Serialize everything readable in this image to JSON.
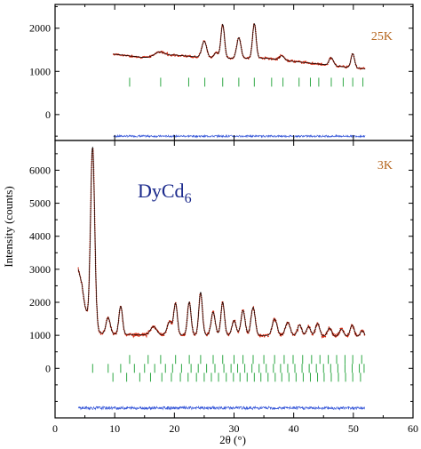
{
  "chart_data": {
    "type": "line",
    "xlabel": "2θ (°)",
    "ylabel": "Intensity (counts)",
    "xlim": [
      0,
      60
    ],
    "x_ticks": [
      0,
      10,
      20,
      30,
      40,
      50,
      60
    ],
    "compound_base": "DyCd",
    "compound_sub": "6",
    "colors": {
      "observed": "#d42a12",
      "calculated": "#000000",
      "difference": "#3b5bd9",
      "bragg": "#2fa845",
      "temp_label": "#b5651d",
      "compound": "#1b2a8c"
    },
    "panels": [
      {
        "label": "25K",
        "ylim": [
          -600,
          2550
        ],
        "y_ticks": [
          0,
          1000,
          2000
        ],
        "x_range": [
          9.8,
          52
        ],
        "background": [
          [
            9.8,
            1400
          ],
          [
            15,
            1320
          ],
          [
            20,
            1380
          ],
          [
            25,
            1320
          ],
          [
            30,
            1300
          ],
          [
            35,
            1310
          ],
          [
            40,
            1230
          ],
          [
            45,
            1160
          ],
          [
            50,
            1080
          ],
          [
            52,
            1060
          ]
        ],
        "peaks": [
          {
            "x": 17.5,
            "h": 100,
            "w": 0.8
          },
          {
            "x": 25.0,
            "h": 380,
            "w": 0.4
          },
          {
            "x": 27.0,
            "h": 120,
            "w": 0.35
          },
          {
            "x": 28.1,
            "h": 780,
            "w": 0.3
          },
          {
            "x": 30.8,
            "h": 480,
            "w": 0.35
          },
          {
            "x": 33.4,
            "h": 800,
            "w": 0.3
          },
          {
            "x": 38.0,
            "h": 100,
            "w": 0.4
          },
          {
            "x": 46.3,
            "h": 180,
            "w": 0.35
          },
          {
            "x": 49.9,
            "h": 330,
            "w": 0.3
          }
        ],
        "bragg_rows": [
          {
            "y": 750,
            "positions": [
              12.5,
              17.7,
              22.4,
              25.1,
              28.1,
              30.8,
              33.4,
              36.3,
              38.2,
              40.9,
              42.8,
              44.2,
              46.3,
              48.3,
              49.9,
              51.6
            ]
          }
        ],
        "difference_offset": -500,
        "difference_amp": 30
      },
      {
        "label": "3K",
        "ylim": [
          -1500,
          6900
        ],
        "y_ticks": [
          0,
          1000,
          2000,
          3000,
          4000,
          5000,
          6000
        ],
        "x_range": [
          3.9,
          52
        ],
        "background": [
          [
            3.9,
            3000
          ],
          [
            4.5,
            2550
          ],
          [
            5.0,
            1900
          ],
          [
            5.6,
            1400
          ],
          [
            6.5,
            1150
          ],
          [
            8,
            1050
          ],
          [
            10,
            1030
          ],
          [
            20,
            1010
          ],
          [
            30,
            1000
          ],
          [
            40,
            990
          ],
          [
            50,
            960
          ],
          [
            52,
            930
          ]
        ],
        "peaks": [
          {
            "x": 6.3,
            "h": 5500,
            "w": 0.35
          },
          {
            "x": 8.9,
            "h": 500,
            "w": 0.35
          },
          {
            "x": 11.0,
            "h": 850,
            "w": 0.3
          },
          {
            "x": 16.5,
            "h": 250,
            "w": 0.5
          },
          {
            "x": 19.2,
            "h": 400,
            "w": 0.4
          },
          {
            "x": 20.2,
            "h": 950,
            "w": 0.3
          },
          {
            "x": 22.5,
            "h": 1000,
            "w": 0.3
          },
          {
            "x": 24.4,
            "h": 1300,
            "w": 0.3
          },
          {
            "x": 26.5,
            "h": 700,
            "w": 0.35
          },
          {
            "x": 28.1,
            "h": 1000,
            "w": 0.3
          },
          {
            "x": 30.0,
            "h": 450,
            "w": 0.35
          },
          {
            "x": 31.5,
            "h": 750,
            "w": 0.35
          },
          {
            "x": 33.2,
            "h": 850,
            "w": 0.35
          },
          {
            "x": 36.8,
            "h": 500,
            "w": 0.4
          },
          {
            "x": 39.0,
            "h": 400,
            "w": 0.4
          },
          {
            "x": 41.0,
            "h": 330,
            "w": 0.35
          },
          {
            "x": 42.5,
            "h": 280,
            "w": 0.35
          },
          {
            "x": 44.0,
            "h": 380,
            "w": 0.35
          },
          {
            "x": 46.0,
            "h": 250,
            "w": 0.35
          },
          {
            "x": 48.0,
            "h": 220,
            "w": 0.35
          },
          {
            "x": 49.8,
            "h": 350,
            "w": 0.35
          },
          {
            "x": 51.5,
            "h": 200,
            "w": 0.35
          }
        ],
        "bragg_rows": [
          {
            "y": 270,
            "positions": [
              12.5,
              15.6,
              17.7,
              20.2,
              22.5,
              24.4,
              26.5,
              28.1,
              30.0,
              31.5,
              33.2,
              35.0,
              36.8,
              38.4,
              39.9,
              41.5,
              43.0,
              44.4,
              45.8,
              47.2,
              48.6,
              49.9,
              51.4
            ]
          },
          {
            "y": 0,
            "positions": [
              6.3,
              8.9,
              11.0,
              13.3,
              15.0,
              16.7,
              18.5,
              19.7,
              21.2,
              22.8,
              24.0,
              25.4,
              26.8,
              28.3,
              29.5,
              30.6,
              31.8,
              33.0,
              34.2,
              35.4,
              36.6,
              37.8,
              39.0,
              40.2,
              41.4,
              42.6,
              43.8,
              45.0,
              46.2,
              47.4,
              48.6,
              49.8,
              51.0,
              51.8
            ]
          },
          {
            "y": -270,
            "positions": [
              9.7,
              12.0,
              14.2,
              16.0,
              17.9,
              19.5,
              21.0,
              22.3,
              23.7,
              25.0,
              26.2,
              27.4,
              28.7,
              29.9,
              31.0,
              32.2,
              33.4,
              34.5,
              35.7,
              36.9,
              38.0,
              39.2,
              40.4,
              41.6,
              42.8,
              44.0,
              45.1,
              46.3,
              47.5,
              48.7,
              49.9,
              51.2
            ]
          }
        ],
        "difference_offset": -1200,
        "difference_amp": 60
      }
    ]
  }
}
